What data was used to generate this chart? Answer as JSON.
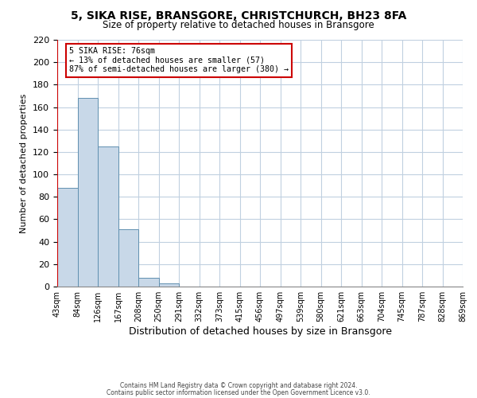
{
  "title": "5, SIKA RISE, BRANSGORE, CHRISTCHURCH, BH23 8FA",
  "subtitle": "Size of property relative to detached houses in Bransgore",
  "xlabel": "Distribution of detached houses by size in Bransgore",
  "ylabel": "Number of detached properties",
  "bin_labels": [
    "43sqm",
    "84sqm",
    "126sqm",
    "167sqm",
    "208sqm",
    "250sqm",
    "291sqm",
    "332sqm",
    "373sqm",
    "415sqm",
    "456sqm",
    "497sqm",
    "539sqm",
    "580sqm",
    "621sqm",
    "663sqm",
    "704sqm",
    "745sqm",
    "787sqm",
    "828sqm",
    "869sqm"
  ],
  "bar_heights": [
    88,
    168,
    125,
    51,
    8,
    3,
    0,
    0,
    0,
    0,
    0,
    0,
    0,
    0,
    0,
    0,
    0,
    0,
    0,
    0
  ],
  "bar_color": "#c8d8e8",
  "bar_edge_color": "#6090b0",
  "vline_x_bar": -0.5,
  "annotation_title": "5 SIKA RISE: 76sqm",
  "annotation_line1": "← 13% of detached houses are smaller (57)",
  "annotation_line2": "87% of semi-detached houses are larger (380) →",
  "vline_color": "#cc0000",
  "annotation_box_color": "#ffffff",
  "annotation_box_edge": "#cc0000",
  "ylim": [
    0,
    220
  ],
  "yticks": [
    0,
    20,
    40,
    60,
    80,
    100,
    120,
    140,
    160,
    180,
    200,
    220
  ],
  "footer1": "Contains HM Land Registry data © Crown copyright and database right 2024.",
  "footer2": "Contains public sector information licensed under the Open Government Licence v3.0.",
  "background_color": "#ffffff",
  "grid_color": "#c0d0e0"
}
